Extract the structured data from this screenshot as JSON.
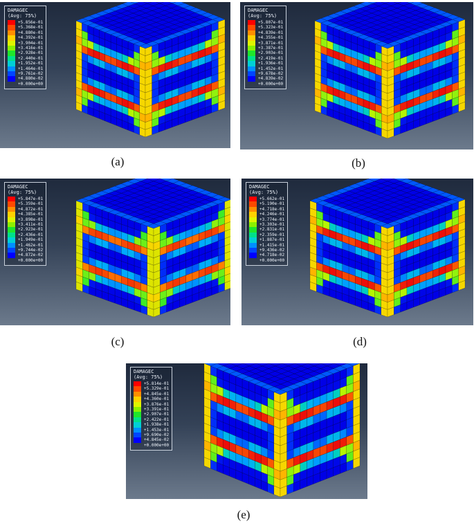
{
  "legend_colors": [
    "#ff0000",
    "#ff4a00",
    "#ff8f00",
    "#ffd200",
    "#dff500",
    "#8cf000",
    "#1fe52c",
    "#00e08a",
    "#00cfd6",
    "#008fff",
    "#0045ff",
    "#0000ff"
  ],
  "panels": [
    {
      "id": "a",
      "caption": "(a)",
      "legend": {
        "title": "DAMAGEC",
        "subtitle": "(Avg: 75%)",
        "values": [
          "+5.856e-01",
          "+5.368e-01",
          "+4.880e-01",
          "+4.392e-01",
          "+3.904e-01",
          "+3.416e-01",
          "+2.928e-01",
          "+2.440e-01",
          "+1.952e-01",
          "+1.464e-01",
          "+9.761e-02",
          "+4.880e-02",
          "+0.000e+00"
        ]
      }
    },
    {
      "id": "b",
      "caption": "(b)",
      "legend": {
        "title": "DAMAGEC",
        "subtitle": "(Avg: 75%)",
        "values": [
          "+5.807e-01",
          "+5.323e-01",
          "+4.839e-01",
          "+4.355e-01",
          "+3.871e-01",
          "+3.387e-01",
          "+2.903e-01",
          "+2.419e-01",
          "+1.936e-01",
          "+1.452e-01",
          "+9.678e-02",
          "+4.839e-02",
          "+0.000e+00"
        ]
      }
    },
    {
      "id": "c",
      "caption": "(c)",
      "legend": {
        "title": "DAMAGEC",
        "subtitle": "(Avg: 75%)",
        "values": [
          "+5.847e-01",
          "+5.359e-01",
          "+4.872e-01",
          "+4.385e-01",
          "+3.898e-01",
          "+3.411e-01",
          "+2.923e-01",
          "+2.436e-01",
          "+1.949e-01",
          "+1.462e-01",
          "+9.744e-02",
          "+4.872e-02",
          "+0.000e+00"
        ]
      }
    },
    {
      "id": "d",
      "caption": "(d)",
      "legend": {
        "title": "DAMAGEC",
        "subtitle": "(Avg: 75%)",
        "values": [
          "+5.662e-01",
          "+5.190e-01",
          "+4.718e-01",
          "+4.246e-01",
          "+3.774e-01",
          "+3.303e-01",
          "+2.831e-01",
          "+2.359e-01",
          "+1.887e-01",
          "+1.415e-01",
          "+9.436e-02",
          "+4.718e-02",
          "+0.000e+00"
        ]
      }
    },
    {
      "id": "e",
      "caption": "(e)",
      "legend": {
        "title": "DAMAGEC",
        "subtitle": "(Avg: 75%)",
        "values": [
          "+5.814e-01",
          "+5.329e-01",
          "+4.845e-01",
          "+4.360e-01",
          "+3.876e-01",
          "+3.391e-01",
          "+2.907e-01",
          "+2.422e-01",
          "+1.938e-01",
          "+1.453e-01",
          "+9.690e-02",
          "+4.845e-02",
          "+0.000e+00"
        ]
      }
    }
  ]
}
